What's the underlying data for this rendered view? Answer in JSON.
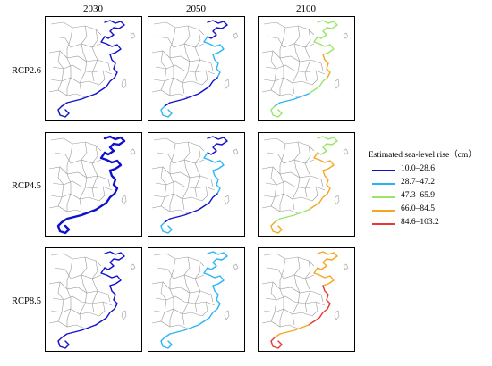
{
  "columns": [
    "2030",
    "2050",
    "2100"
  ],
  "rows": [
    "RCP2.6",
    "RCP4.5",
    "RCP8.5"
  ],
  "legend": {
    "title": "Estimated sea-level rise（cm）",
    "items": [
      {
        "label": "10.0–28.6",
        "color": "#1010cc"
      },
      {
        "label": "28.7–47.2",
        "color": "#29b6f6"
      },
      {
        "label": "47.3–65.9",
        "color": "#99e666"
      },
      {
        "label": "66.0–84.5",
        "color": "#f5a623"
      },
      {
        "label": "84.6–103.2",
        "color": "#e53935"
      }
    ]
  },
  "panels": [
    [
      "blue",
      "blue",
      "blue"
    ],
    [
      "blue",
      "blue",
      "blue"
    ],
    [
      "blue",
      "blue",
      "blue"
    ]
  ],
  "panel_coast_classes": {
    "RCP2.6": {
      "2030": [
        "10.0–28.6",
        "10.0–28.6",
        "10.0–28.6",
        "10.0–28.6",
        "10.0–28.6",
        "10.0–28.6"
      ],
      "2050": [
        "10.0–28.6",
        "28.7–47.2",
        "28.7–47.2",
        "10.0–28.6",
        "10.0–28.6",
        "28.7–47.2"
      ],
      "2100": [
        "47.3–65.9",
        "47.3–65.9",
        "66.0–84.5",
        "47.3–65.9",
        "28.7–47.2",
        "47.3–65.9"
      ]
    },
    "RCP4.5": {
      "2030": [
        "10.0–28.6",
        "10.0–28.6",
        "10.0–28.6",
        "10.0–28.6",
        "10.0–28.6",
        "10.0–28.6"
      ],
      "2050": [
        "10.0–28.6",
        "28.7–47.2",
        "28.7–47.2",
        "10.0–28.6",
        "10.0–28.6",
        "28.7–47.2"
      ],
      "2100": [
        "47.3–65.9",
        "66.0–84.5",
        "66.0–84.5",
        "66.0–84.5",
        "47.3–65.9",
        "66.0–84.5"
      ]
    },
    "RCP8.5": {
      "2030": [
        "10.0–28.6",
        "10.0–28.6",
        "10.0–28.6",
        "10.0–28.6",
        "10.0–28.6",
        "10.0–28.6"
      ],
      "2050": [
        "28.7–47.2",
        "28.7–47.2",
        "28.7–47.2",
        "28.7–47.2",
        "28.7–47.2",
        "28.7–47.2"
      ],
      "2100": [
        "66.0–84.5",
        "66.0–84.5",
        "84.6–103.2",
        "84.6–103.2",
        "66.0–84.5",
        "84.6–103.2"
      ]
    }
  }
}
